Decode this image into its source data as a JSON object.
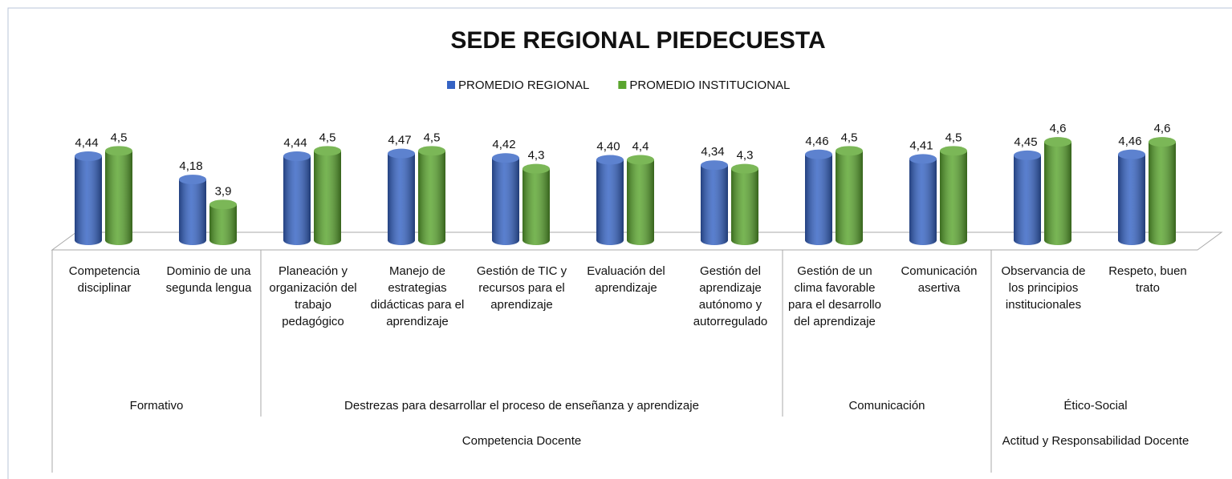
{
  "chart_data": {
    "type": "bar3d",
    "title": "SEDE REGIONAL PIEDECUESTA",
    "categories": [
      "Competencia disciplinar",
      "Dominio de una segunda lengua",
      "Planeación y organización del trabajo pedagógico",
      "Manejo de estrategias didácticas para el aprendizaje",
      "Gestión de TIC y recursos para el aprendizaje",
      "Evaluación del aprendizaje",
      "Gestión del aprendizaje autónomo y autorregulado",
      "Gestión de un clima favorable para el desarrollo del aprendizaje",
      "Comunicación asertiva",
      "Observancia de los principios institucionales",
      "Respeto, buen trato"
    ],
    "groups": [
      {
        "label": "Formativo",
        "count": 2
      },
      {
        "label": "Destrezas para desarrollar el proceso de enseñanza y aprendizaje",
        "count": 5
      },
      {
        "label": "Comunicación",
        "count": 2
      },
      {
        "label": "Ético-Social",
        "count": 2
      }
    ],
    "supergroups": [
      {
        "label": "Competencia Docente",
        "count": 9
      },
      {
        "label": "Actitud y Responsabilidad Docente",
        "count": 2
      }
    ],
    "series": [
      {
        "name": "PROMEDIO REGIONAL",
        "color": "#3563c4",
        "values": [
          4.44,
          4.18,
          4.44,
          4.47,
          4.42,
          4.4,
          4.34,
          4.46,
          4.41,
          4.45,
          4.46
        ],
        "value_labels": [
          "4,44",
          "4,18",
          "4,44",
          "4,47",
          "4,42",
          "4,40",
          "4,34",
          "4,46",
          "4,41",
          "4,45",
          "4,46"
        ]
      },
      {
        "name": "PROMEDIO INSTITUCIONAL",
        "color": "#5aa52e",
        "values": [
          4.5,
          3.9,
          4.5,
          4.5,
          4.3,
          4.4,
          4.3,
          4.5,
          4.5,
          4.6,
          4.6
        ],
        "value_labels": [
          "4,5",
          "3,9",
          "4,5",
          "4,5",
          "4,3",
          "4,4",
          "4,3",
          "4,5",
          "4,5",
          "4,6",
          "4,6"
        ]
      }
    ],
    "ylim": [
      3.5,
      4.7
    ],
    "legend": "top"
  }
}
